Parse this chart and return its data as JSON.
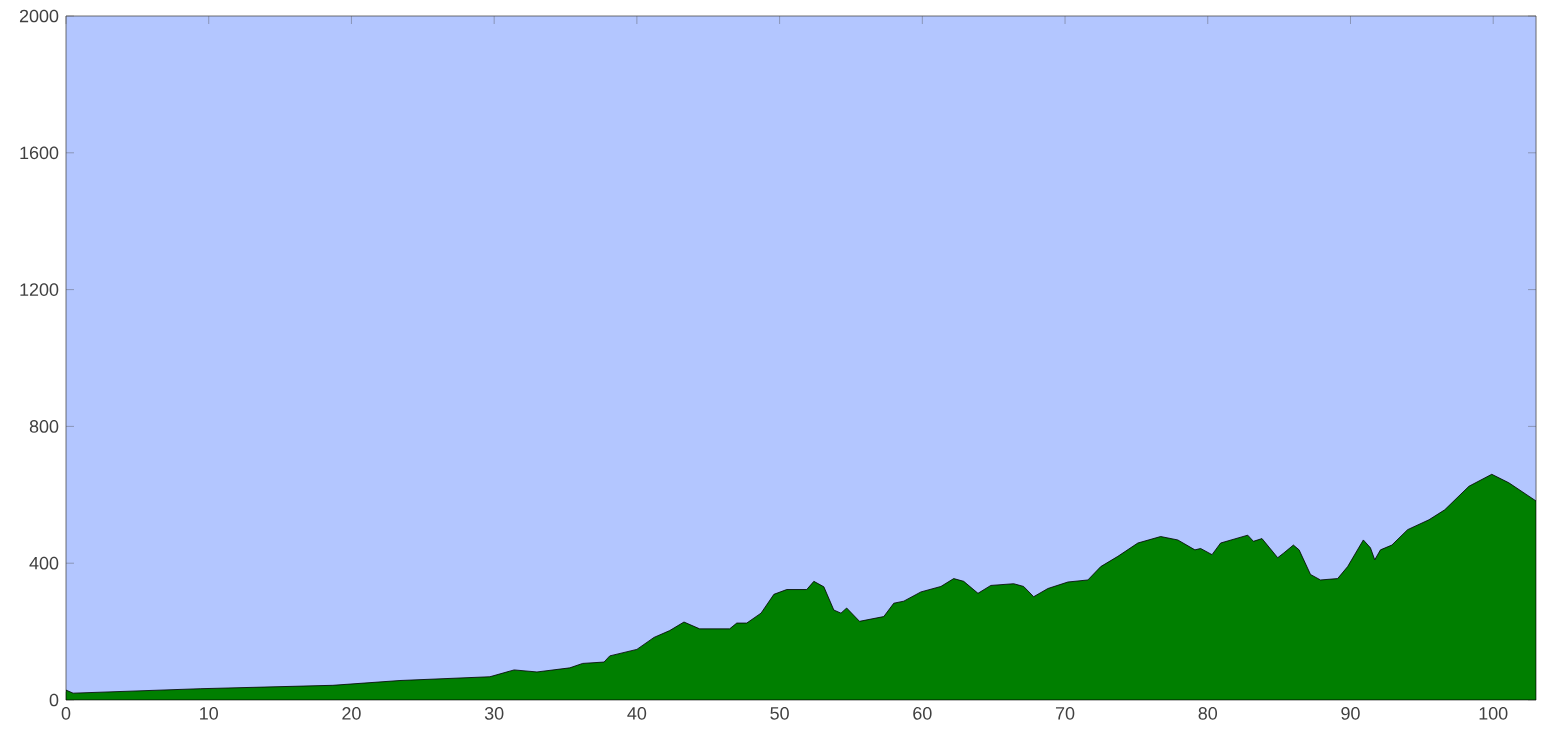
{
  "chart_data": {
    "type": "area",
    "x": [
      0,
      0.5,
      9.4,
      18.7,
      23.4,
      29.7,
      31.4,
      33,
      35.3,
      36.2,
      37.7,
      38.1,
      40,
      41.2,
      42.3,
      43.3,
      44.4,
      46.5,
      47,
      47.7,
      48.7,
      49.6,
      50.5,
      51.9,
      52.4,
      53.1,
      53.8,
      54.3,
      54.7,
      55.6,
      57.3,
      58,
      58.7,
      59.9,
      61.3,
      62.2,
      62.9,
      63.9,
      64.8,
      66.4,
      67.1,
      67.8,
      68.8,
      70.2,
      71.6,
      72.5,
      73.7,
      75.1,
      76.7,
      77.9,
      79.1,
      79.5,
      80.3,
      80.9,
      82.8,
      83.2,
      83.8,
      84.9,
      85.3,
      86,
      86.4,
      87.2,
      87.9,
      89.1,
      89.8,
      90.9,
      91.4,
      91.7,
      92.1,
      92.9,
      94,
      95.5,
      96.6,
      98.3,
      99.9,
      101.1,
      103
    ],
    "values": [
      29,
      20,
      33,
      43,
      57,
      68,
      88,
      82,
      94,
      107,
      111,
      129,
      148,
      183,
      203,
      228,
      208,
      208,
      225,
      225,
      254,
      309,
      323,
      323,
      347,
      331,
      263,
      254,
      269,
      230,
      244,
      283,
      289,
      316,
      332,
      355,
      347,
      312,
      335,
      340,
      332,
      302,
      326,
      345,
      351,
      390,
      420,
      459,
      478,
      468,
      439,
      443,
      425,
      459,
      482,
      464,
      472,
      416,
      429,
      453,
      439,
      367,
      351,
      355,
      390,
      468,
      445,
      410,
      439,
      453,
      498,
      527,
      556,
      625,
      660,
      635,
      582
    ],
    "color": "#007f00",
    "xlim": [
      0,
      103
    ],
    "ylim": [
      0,
      2000
    ],
    "xticks": [
      0,
      10,
      20,
      30,
      40,
      50,
      60,
      70,
      80,
      90,
      100
    ],
    "yticks": [
      0,
      400,
      800,
      1200,
      1600,
      2000
    ],
    "grid": false
  }
}
